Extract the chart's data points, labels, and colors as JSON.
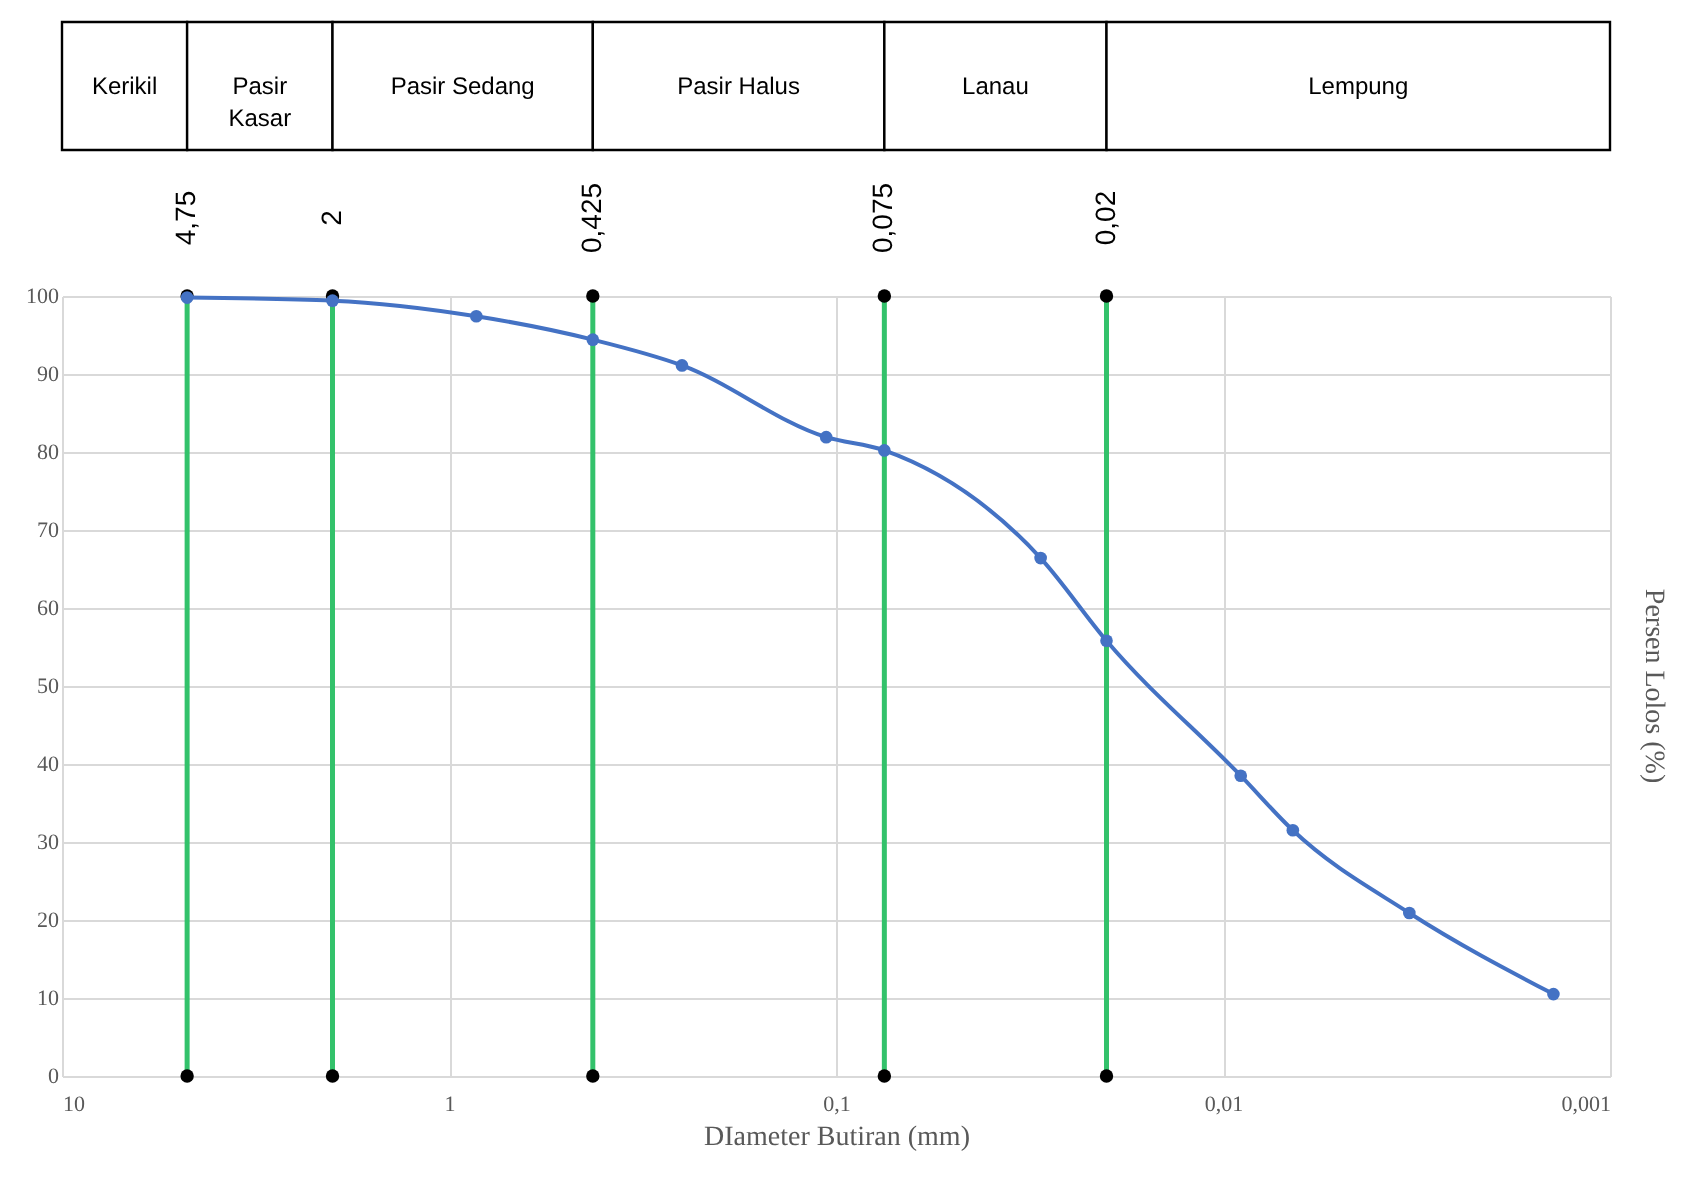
{
  "chart_data": {
    "type": "line",
    "xlabel": "DIameter Butiran (mm)",
    "ylabel": "Persen Lolos (%)",
    "x": [
      4.75,
      2,
      0.85,
      0.425,
      0.25,
      0.106,
      0.075,
      0.0296,
      0.02,
      0.009,
      0.0066,
      0.0033,
      0.0014
    ],
    "series": [
      {
        "color": "#4472c4",
        "values": [
          99.8,
          99.4,
          97.4,
          94.4,
          91.1,
          81.9,
          80.2,
          66.4,
          55.8,
          38.5,
          31.5,
          20.9,
          10.5
        ]
      }
    ],
    "log": "x",
    "xlim": [
      10,
      0.001
    ],
    "xticks": [
      {
        "value": 10,
        "label": "10"
      },
      {
        "value": 1,
        "label": "1"
      },
      {
        "value": 0.1,
        "label": "0,1"
      },
      {
        "value": 0.01,
        "label": "0,01"
      },
      {
        "value": 0.001,
        "label": "0,001"
      }
    ],
    "ylim": [
      0,
      100
    ],
    "yticks": [
      0,
      10,
      20,
      30,
      40,
      50,
      60,
      70,
      80,
      90,
      100
    ],
    "grid": true,
    "marker": "circle",
    "line_style": "solid",
    "ref_lines": [
      {
        "axis": "x",
        "value": 4.75,
        "label": "4,75",
        "color": "#33c26b"
      },
      {
        "axis": "x",
        "value": 2,
        "label": "2",
        "color": "#33c26b"
      },
      {
        "axis": "x",
        "value": 0.425,
        "label": "0,425",
        "color": "#33c26b"
      },
      {
        "axis": "x",
        "value": 0.075,
        "label": "0,075",
        "color": "#33c26b"
      },
      {
        "axis": "x",
        "value": 0.02,
        "label": "0,02",
        "color": "#33c26b"
      }
    ],
    "annotations": [
      "Kerikil",
      "Pasir Kasar",
      "Pasir Sedang",
      "Pasir Halus",
      "Lanau",
      "Lempung"
    ]
  }
}
